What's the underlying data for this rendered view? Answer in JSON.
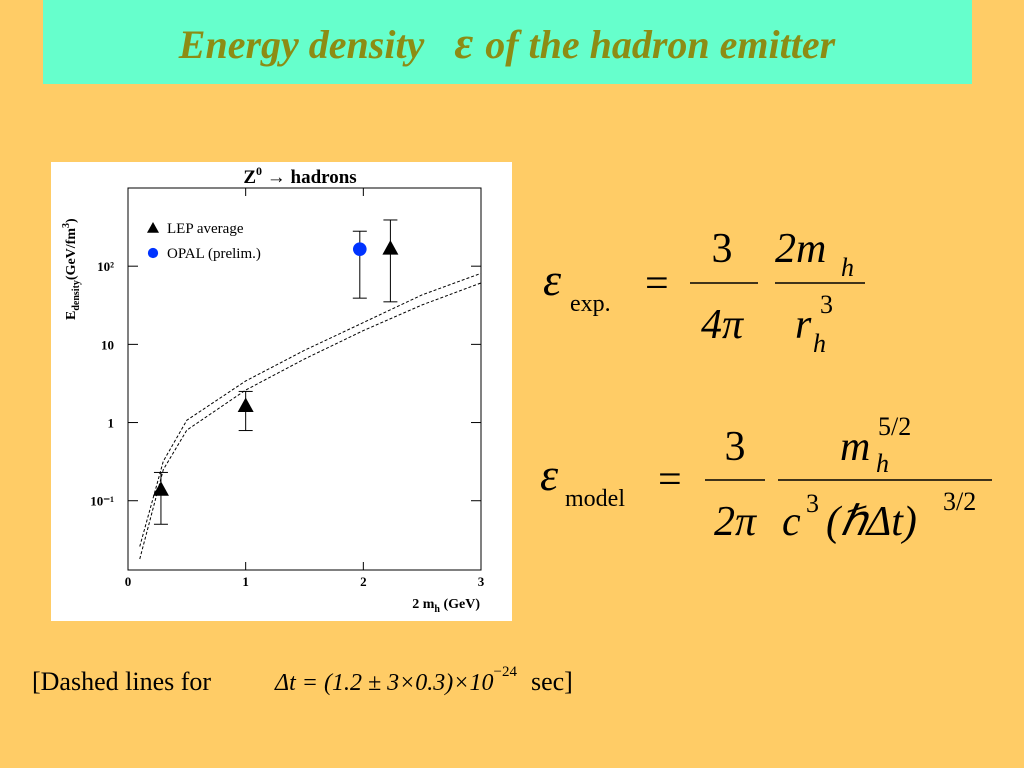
{
  "title": [
    "Energy density",
    "ε",
    "of the hadron emitter"
  ],
  "chart_data": {
    "type": "scatter",
    "title": [
      "Z",
      "0",
      " → hadrons"
    ],
    "xlabel": [
      "2 m",
      "h",
      " (GeV)"
    ],
    "ylabel": [
      "E",
      "density",
      "(GeV/fm",
      "3",
      ")"
    ],
    "xlim": [
      0,
      3
    ],
    "xticks": [
      0,
      1,
      2,
      3
    ],
    "ylim": [
      0.013,
      1000
    ],
    "yscale": "log",
    "yticks": [
      {
        "value": 0.1,
        "label": "10⁻¹"
      },
      1,
      10,
      {
        "value": 100,
        "label": "10²"
      }
    ],
    "legend": "upper left",
    "series": [
      {
        "name": "LEP average",
        "color": "#000000",
        "marker": "triangle",
        "x": [
          0.28,
          1.0,
          2.23
        ],
        "values": [
          0.14,
          1.65,
          170
        ],
        "lower": [
          0.05,
          0.79,
          35
        ],
        "upper": [
          0.23,
          2.5,
          390
        ]
      },
      {
        "name": "OPAL (prelim.)",
        "color": "#0033ff",
        "marker": "circle",
        "x": [
          1.97
        ],
        "values": [
          165
        ],
        "lower": [
          39
        ],
        "upper": [
          280
        ]
      },
      {
        "color": "#000000",
        "style": "dashed",
        "x": [
          0.1,
          0.3,
          0.5,
          1,
          1.5,
          2,
          2.5,
          3
        ],
        "values": [
          0.026,
          0.32,
          1.07,
          3.4,
          8.4,
          19,
          43,
          81
        ]
      },
      {
        "color": "#000000",
        "style": "dashed",
        "x": [
          0.1,
          0.3,
          0.5,
          1,
          1.5,
          2,
          2.5,
          3
        ],
        "values": [
          0.018,
          0.25,
          0.8,
          2.6,
          6.5,
          15,
          32,
          61
        ]
      }
    ]
  },
  "equations": [
    {
      "lhs": "ε",
      "sub": "exp.",
      "eq": "=",
      "n1": "3",
      "d1": "4π",
      "n2": "2m",
      "n2sub": "h",
      "d2": "r",
      "d2sup": "3",
      "d2sub": "h"
    },
    {
      "lhs": "ε",
      "sub": "model",
      "eq": "=",
      "n1": "3",
      "d1": "2π",
      "n2": "m",
      "n2sup": "5/2",
      "n2sub": "h",
      "d2": "c",
      "d2sup": "3",
      "d2b": "(ℏΔt)",
      "d2bsup": "3/2"
    }
  ],
  "footnote": [
    "[Dashed lines for",
    "Δt = (1.2 ± 3×0.3)×10",
    "−24",
    "sec]"
  ]
}
